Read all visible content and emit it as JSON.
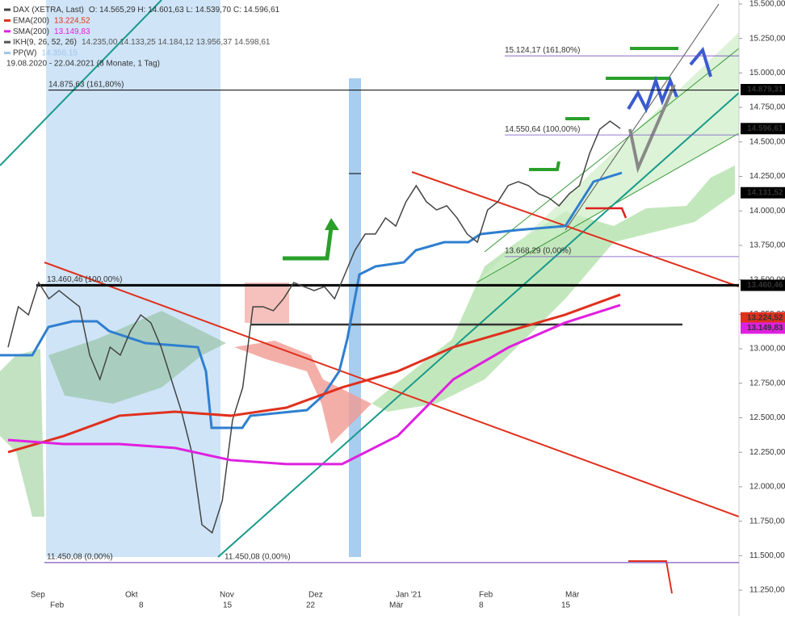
{
  "chart_data": {
    "type": "line",
    "ylim": [
      11063,
      15529
    ],
    "yticks": [
      {
        "value": 11250,
        "label": "11.250,00"
      },
      {
        "value": 11500,
        "label": "11.500,00"
      },
      {
        "value": 11750,
        "label": "11.750,00"
      },
      {
        "value": 12000,
        "label": "12.000,00"
      },
      {
        "value": 12250,
        "label": "12.250,00"
      },
      {
        "value": 12500,
        "label": "12.500,00"
      },
      {
        "value": 12750,
        "label": "12.750,00"
      },
      {
        "value": 13000,
        "label": "13.000,00"
      },
      {
        "value": 13250,
        "label": "13.250,00"
      },
      {
        "value": 13500,
        "label": "13.500,00"
      },
      {
        "value": 13750,
        "label": "13.750,00"
      },
      {
        "value": 14000,
        "label": "14.000,00"
      },
      {
        "value": 14250,
        "label": "14.250,00"
      },
      {
        "value": 14500,
        "label": "14.500,00"
      },
      {
        "value": 14750,
        "label": "14.750,00"
      },
      {
        "value": 15000,
        "label": "15.000,00"
      },
      {
        "value": 15250,
        "label": "15.250,00"
      },
      {
        "value": 15500,
        "label": "15.500,00"
      }
    ],
    "x_labels_top": [
      "Sep",
      "Okt",
      "Nov",
      "Dez",
      "Jan '21",
      "Feb",
      "Mär"
    ],
    "x_labels_bottom": [
      "Feb",
      "8",
      "15",
      "22",
      "Mär",
      "8",
      "15"
    ],
    "series": [
      {
        "name": "DAX (XETRA, Last)",
        "info": "O: 14.565,29  H: 14.601,63  L: 14.539,70  C: 14.596,61",
        "color": "#444444",
        "values": [
          13012,
          13305,
          13246,
          13480,
          13363,
          13422,
          13363,
          13305,
          12954,
          12778,
          13012,
          12954,
          13129,
          13246,
          13188,
          13012,
          12778,
          12544,
          12251,
          11725,
          11666,
          11900,
          12485,
          12720,
          13305,
          13305,
          13276,
          13363,
          13480,
          13451,
          13422,
          13451,
          13363,
          13539,
          13715,
          13832,
          13832,
          13949,
          13890,
          14066,
          14183,
          14066,
          14007,
          14037,
          13949,
          13832,
          13773,
          14007,
          14066,
          14183,
          14212,
          14183,
          14124,
          14095,
          14037,
          14124,
          14183,
          14417,
          14593,
          14651,
          14597
        ]
      },
      {
        "name": "EMA(200)",
        "info": "13.224,52",
        "color": "#e0301e",
        "values": [
          12251,
          12368,
          12515,
          12544,
          12515,
          12573,
          12720,
          12837,
          13012,
          13129,
          13246,
          13393
        ]
      },
      {
        "name": "SMA(200)",
        "info": "13.149,83",
        "color": "#e020e0",
        "values": [
          12339,
          12310,
          12310,
          12281,
          12193,
          12164,
          12164,
          12368,
          12778,
          13012,
          13188,
          13317
        ]
      }
    ],
    "extra_legend": [
      {
        "name": "IKH(9, 26, 52, 26)",
        "info": "14.235,00  14.133,25  14.184,12  13.956,37  14.598,61",
        "color": "#555555"
      },
      {
        "name": "PP(W)",
        "info": "14.356,15",
        "color": "#9fc4ea"
      }
    ],
    "period": "19.08.2020 - 22.04.2021  (8 Monate, 1 Tag)",
    "price_tags": [
      {
        "value": 14879.31,
        "label": "14.879,31",
        "color": "#000000"
      },
      {
        "value": 14596.61,
        "label": "14.596,61",
        "color": "#000000"
      },
      {
        "value": 14131.52,
        "label": "14.131,52",
        "color": "#000000"
      },
      {
        "value": 13460.46,
        "label": "13.460,46",
        "color": "#000000"
      },
      {
        "value": 13224.52,
        "label": "13.224,52",
        "color": "#e0301e"
      },
      {
        "value": 13149.83,
        "label": "13.149,83",
        "color": "#e020e0"
      }
    ],
    "annotations": [
      {
        "value": 14875.63,
        "label": "14.875,63 (161,80%)"
      },
      {
        "value": 15124.17,
        "label": "15.124,17 (161,80%)"
      },
      {
        "value": 14550.64,
        "label": "14.550,64 (100,00%)"
      },
      {
        "value": 13668.29,
        "label": "13.668,29 (0,00%)"
      },
      {
        "value": 13460.46,
        "label": "13.460,46 (100,00%)"
      },
      {
        "value": 11450.08,
        "label": "11.450,08 (0,00%)"
      },
      {
        "value": 11450.08,
        "label": "11.450,08 (0,00%)"
      }
    ]
  }
}
